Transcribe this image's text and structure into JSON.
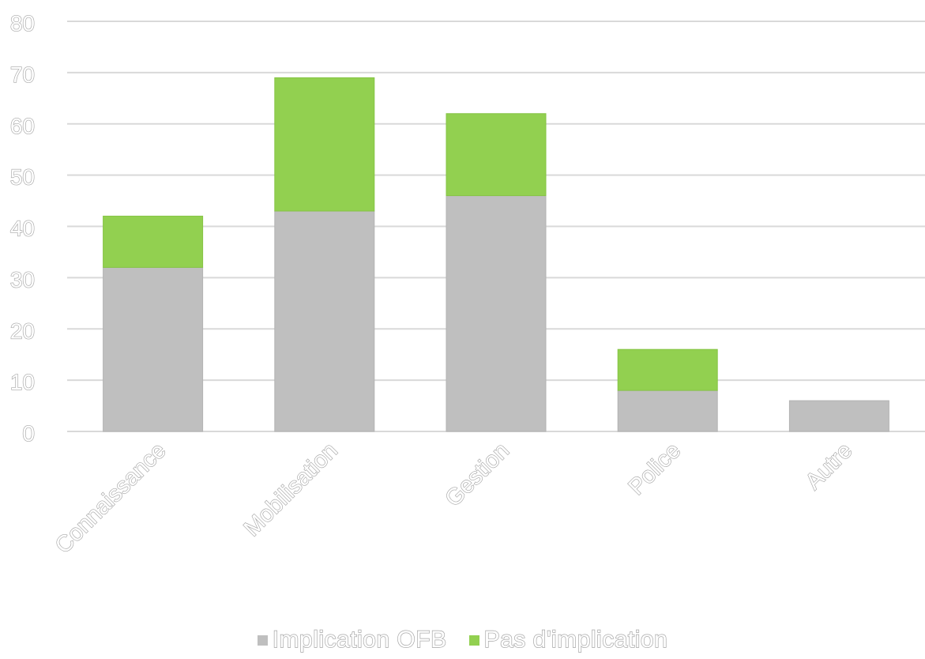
{
  "chart_data": {
    "type": "bar",
    "stacked": true,
    "categories": [
      "Connaissance",
      "Mobilisation",
      "Gestion",
      "Police",
      "Autre"
    ],
    "series": [
      {
        "name": "Implication OFB",
        "values": [
          32,
          43,
          46,
          8,
          6
        ],
        "color": "#bfbfbf"
      },
      {
        "name": "Pas d'implication",
        "values": [
          10,
          26,
          16,
          8,
          0
        ],
        "color": "#92d050"
      }
    ],
    "ylim": [
      0,
      80
    ],
    "yticks": [
      0,
      10,
      20,
      30,
      40,
      50,
      60,
      70,
      80
    ],
    "grid": true,
    "legend_position": "bottom",
    "title": "",
    "xlabel": "",
    "ylabel": ""
  }
}
